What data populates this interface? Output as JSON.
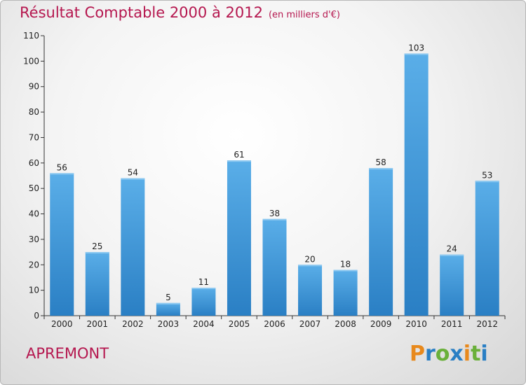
{
  "chart_data": {
    "type": "bar",
    "title": "Résultat Comptable 2000 à 2012",
    "subtitle": "(en milliers d'€)",
    "categories": [
      "2000",
      "2001",
      "2002",
      "2003",
      "2004",
      "2005",
      "2006",
      "2007",
      "2008",
      "2009",
      "2010",
      "2011",
      "2012"
    ],
    "values": [
      56,
      25,
      54,
      5,
      11,
      61,
      38,
      20,
      18,
      58,
      103,
      24,
      53
    ],
    "ylim": [
      0,
      110
    ],
    "yticks": [
      0,
      10,
      20,
      30,
      40,
      50,
      60,
      70,
      80,
      90,
      100,
      110
    ],
    "grid": false,
    "bar_color_top": "#5aaee8",
    "bar_color_bottom": "#2a7fc4"
  },
  "footer": {
    "commune": "APREMONT",
    "logo": {
      "letters": [
        "P",
        "r",
        "o",
        "x",
        "i",
        "t",
        "i"
      ],
      "colors": [
        "#e8891c",
        "#2a7fc4",
        "#6ab03a",
        "#2a7fc4",
        "#e8891c",
        "#6ab03a",
        "#2a7fc4"
      ]
    }
  }
}
